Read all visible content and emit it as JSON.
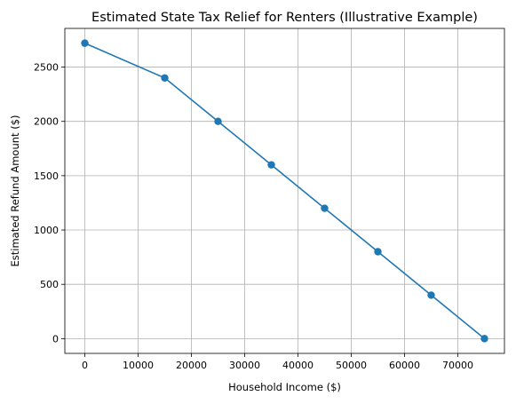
{
  "chart_data": {
    "type": "line",
    "title": "Estimated State Tax Relief for Renters (Illustrative Example)",
    "xlabel": "Household Income ($)",
    "ylabel": "Estimated Refund Amount ($)",
    "x": [
      0,
      15000,
      25000,
      35000,
      45000,
      55000,
      65000,
      75000
    ],
    "series": [
      {
        "values": [
          2720,
          2400,
          2000,
          1600,
          1200,
          800,
          400,
          0
        ]
      }
    ],
    "xlim": [
      -3750,
      78750
    ],
    "ylim": [
      -136,
      2856
    ],
    "xticks": [
      0,
      10000,
      20000,
      30000,
      40000,
      50000,
      60000,
      70000
    ],
    "yticks": [
      0,
      500,
      1000,
      1500,
      2000,
      2500
    ],
    "grid": true,
    "marker": "circle",
    "colors": {
      "line": "#1f77b4",
      "grid": "#b0b0b0",
      "axes": "#000000"
    }
  }
}
